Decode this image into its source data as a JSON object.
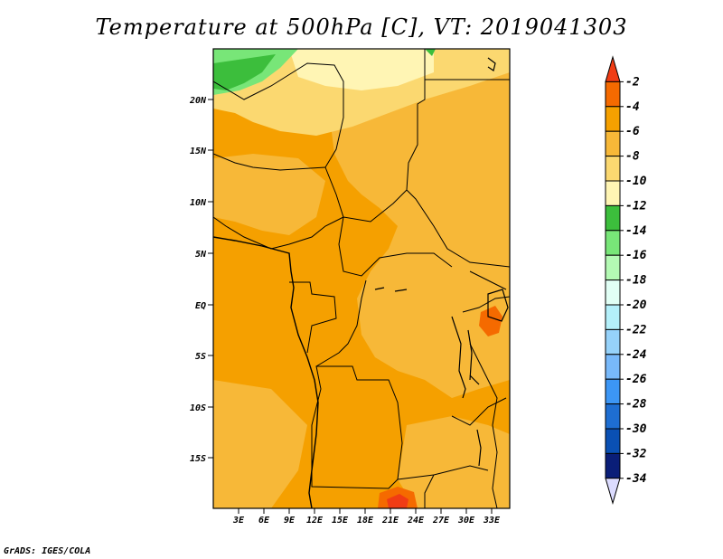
{
  "title": "Temperature at 500hPa [C], VT: 2019041303",
  "credit": "GrADS: IGES/COLA",
  "lat_labels": [
    "20N",
    "15N",
    "10N",
    "5N",
    "EQ",
    "5S",
    "10S",
    "15S"
  ],
  "lon_labels": [
    "3E",
    "6E",
    "9E",
    "12E",
    "15E",
    "18E",
    "21E",
    "24E",
    "27E",
    "30E",
    "33E"
  ],
  "legend": {
    "levels": [
      "-2",
      "-4",
      "-6",
      "-8",
      "-10",
      "-12",
      "-14",
      "-16",
      "-18",
      "-20",
      "-22",
      "-24",
      "-26",
      "-28",
      "-30",
      "-32",
      "-34"
    ],
    "colors": [
      "#f03c14",
      "#f56a00",
      "#f5a000",
      "#f7b838",
      "#fbd870",
      "#fff5b4",
      "#3cbe3c",
      "#78e678",
      "#b4fab4",
      "#e1fff5",
      "#b4f0fa",
      "#96d2fa",
      "#78b9fa",
      "#3c96f5",
      "#1e6ed2",
      "#0a50b4",
      "#0a1e78",
      "#dcdcff"
    ]
  }
}
